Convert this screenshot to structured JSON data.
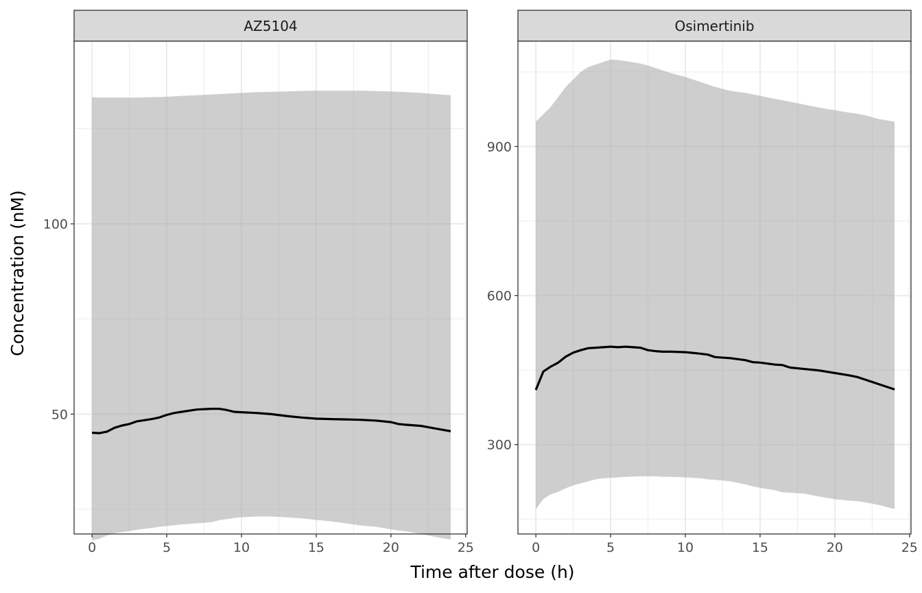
{
  "chart_data": {
    "type": "area",
    "xlabel": "Time after dose (h)",
    "ylabel": "Concentration (nM)",
    "grid": true,
    "legend": "none",
    "colors": {
      "line": "#000000",
      "band": "#cccccc",
      "grid": "#ebebeb",
      "strip_bg": "#d9d9d9"
    },
    "panels": [
      {
        "name": "AZ5104",
        "xlim": [
          -1.2,
          25.1
        ],
        "ylim": [
          18.5,
          148
        ],
        "x_ticks": [
          0,
          5,
          10,
          15,
          20,
          25
        ],
        "y_ticks": [
          50,
          100
        ],
        "y_minor_ticks": [
          25,
          75,
          125
        ],
        "x": [
          0,
          0.5,
          1,
          1.5,
          2,
          2.5,
          3,
          4,
          4.5,
          5,
          5.5,
          6,
          7,
          8,
          8.5,
          9,
          9.5,
          10,
          11,
          12,
          13,
          14,
          15,
          16,
          17,
          18,
          19,
          20,
          20.5,
          21,
          22,
          23,
          24
        ],
        "median": [
          45.1,
          45.0,
          45.4,
          46.4,
          47.0,
          47.4,
          48.1,
          48.7,
          49.1,
          49.8,
          50.3,
          50.6,
          51.2,
          51.4,
          51.4,
          51.1,
          50.6,
          50.5,
          50.3,
          50.0,
          49.5,
          49.1,
          48.8,
          48.7,
          48.6,
          48.5,
          48.3,
          47.9,
          47.4,
          47.2,
          46.9,
          46.2,
          45.5
        ],
        "lower": [
          16.8,
          17.3,
          18.1,
          18.7,
          19.0,
          19.3,
          19.6,
          20.1,
          20.4,
          20.6,
          20.8,
          21.0,
          21.3,
          21.6,
          22.1,
          22.4,
          22.7,
          22.9,
          23.1,
          23.1,
          22.9,
          22.6,
          22.2,
          21.8,
          21.3,
          20.7,
          20.4,
          19.7,
          19.4,
          19.2,
          18.5,
          17.7,
          17.0
        ],
        "upper": [
          133.3,
          133.2,
          133.2,
          133.2,
          133.2,
          133.2,
          133.2,
          133.3,
          133.3,
          133.4,
          133.5,
          133.6,
          133.8,
          134.0,
          134.1,
          134.2,
          134.3,
          134.4,
          134.6,
          134.7,
          134.8,
          134.9,
          135.0,
          135.0,
          135.0,
          135.0,
          134.9,
          134.8,
          134.7,
          134.6,
          134.4,
          134.1,
          133.8
        ]
      },
      {
        "name": "Osimertinib",
        "xlim": [
          -1.2,
          25.1
        ],
        "ylim": [
          120,
          1112
        ],
        "x_ticks": [
          0,
          5,
          10,
          15,
          20,
          25
        ],
        "y_ticks": [
          300,
          600,
          900
        ],
        "y_minor_ticks": [
          150,
          450,
          750,
          1050
        ],
        "x": [
          0,
          0.5,
          1,
          1.5,
          2,
          2.5,
          3,
          3.5,
          4,
          4.5,
          5,
          5.5,
          6,
          7,
          7.5,
          8,
          8.5,
          9,
          10,
          11,
          11.5,
          12,
          13,
          14,
          14.5,
          15,
          16,
          16.5,
          17,
          18,
          19,
          20,
          21,
          21.5,
          22,
          23,
          24
        ],
        "median": [
          410,
          447,
          457,
          465,
          477,
          485,
          490,
          494,
          495,
          496,
          497,
          496,
          497,
          495,
          490,
          488,
          487,
          487,
          486,
          483,
          481,
          476,
          474,
          470,
          466,
          465,
          461,
          460,
          455,
          452,
          449,
          444,
          439,
          436,
          431,
          421,
          411
        ],
        "lower": [
          170,
          190,
          200,
          205,
          212,
          218,
          222,
          226,
          230,
          232,
          233,
          234,
          235,
          236,
          236,
          236,
          235,
          235,
          234,
          232,
          230,
          229,
          226,
          220,
          216,
          213,
          208,
          204,
          203,
          201,
          195,
          190,
          187,
          186,
          184,
          178,
          170
        ],
        "upper": [
          950,
          965,
          980,
          1000,
          1020,
          1035,
          1050,
          1060,
          1065,
          1070,
          1075,
          1074,
          1072,
          1067,
          1063,
          1058,
          1053,
          1048,
          1040,
          1030,
          1025,
          1020,
          1012,
          1008,
          1005,
          1002,
          996,
          993,
          990,
          984,
          978,
          973,
          968,
          966,
          963,
          955,
          950
        ]
      }
    ]
  }
}
